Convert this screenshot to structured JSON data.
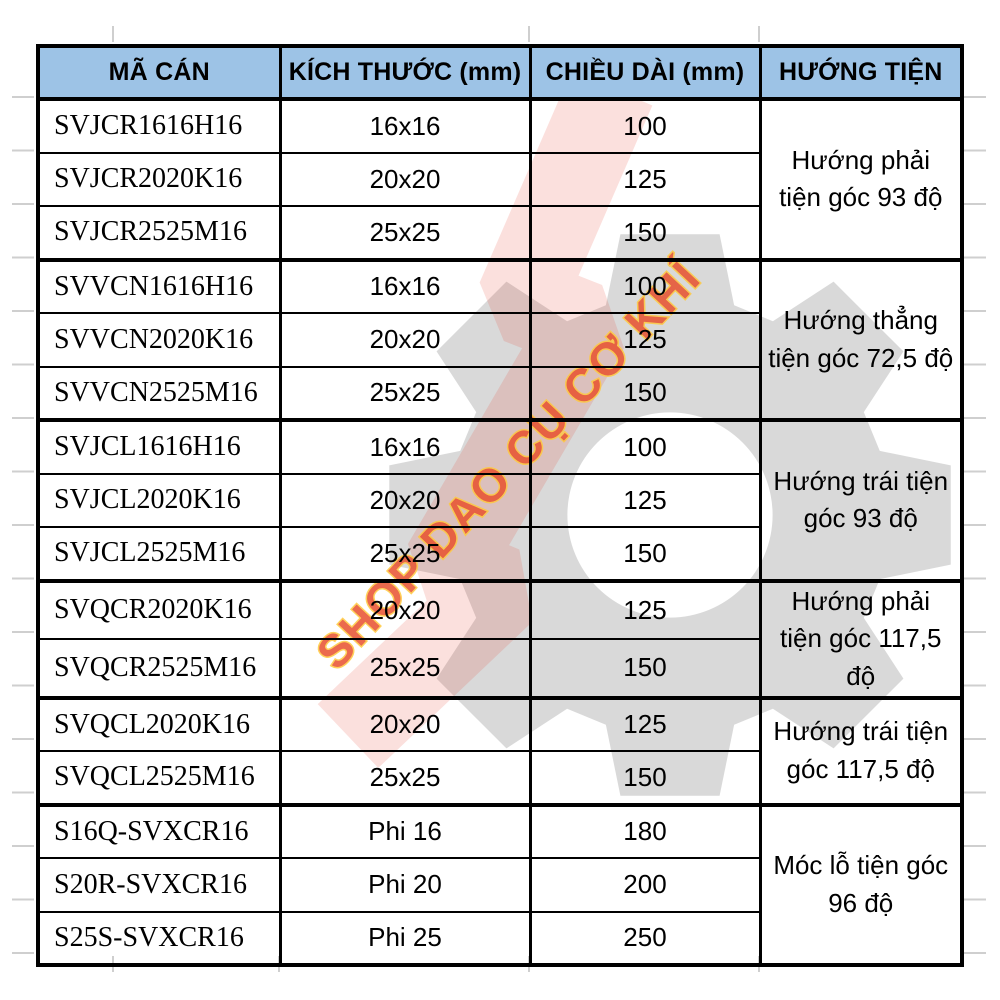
{
  "table": {
    "header_bg": "#9dc3e6",
    "border_color": "#000000",
    "headers": [
      "MÃ CÁN",
      "KÍCH THƯỚC (mm)",
      "CHIỀU DÀI (mm)",
      "HƯỚNG TIỆN"
    ],
    "groups": [
      {
        "direction": "Hướng phải tiện góc 93 độ",
        "rows": [
          [
            "SVJCR1616H16",
            "16x16",
            "100"
          ],
          [
            "SVJCR2020K16",
            "20x20",
            "125"
          ],
          [
            "SVJCR2525M16",
            "25x25",
            "150"
          ]
        ]
      },
      {
        "direction": "Hướng thẳng tiện góc 72,5 độ",
        "rows": [
          [
            "SVVCN1616H16",
            "16x16",
            "100"
          ],
          [
            "SVVCN2020K16",
            "20x20",
            "125"
          ],
          [
            "SVVCN2525M16",
            "25x25",
            "150"
          ]
        ]
      },
      {
        "direction": "Hướng trái tiện góc 93 độ",
        "rows": [
          [
            "SVJCL1616H16",
            "16x16",
            "100"
          ],
          [
            "SVJCL2020K16",
            "20x20",
            "125"
          ],
          [
            "SVJCL2525M16",
            "25x25",
            "150"
          ]
        ]
      },
      {
        "direction": "Hướng phải tiện góc 117,5 độ",
        "rows": [
          [
            "SVQCR2020K16",
            "20x20",
            "125"
          ],
          [
            "SVQCR2525M16",
            "25x25",
            "150"
          ]
        ]
      },
      {
        "direction": "Hướng trái tiện góc 117,5 độ",
        "rows": [
          [
            "SVQCL2020K16",
            "20x20",
            "125"
          ],
          [
            "SVQCL2525M16",
            "25x25",
            "150"
          ]
        ]
      },
      {
        "direction": "Móc lỗ tiện góc 96 độ",
        "rows": [
          [
            "S16Q-SVXCR16",
            "Phi 16",
            "180"
          ],
          [
            "S20R-SVXCR16",
            "Phi 20",
            "200"
          ],
          [
            "S25S-SVXCR16",
            "Phi 25",
            "250"
          ]
        ]
      }
    ]
  },
  "watermark": {
    "text": "SHOP DAO CỤ CƠ KHÍ",
    "text_fill": "#e8512e",
    "text_outline": "#ffc93e",
    "gear_color": "#b3b3b3",
    "bolt_color": "#e8402a"
  }
}
